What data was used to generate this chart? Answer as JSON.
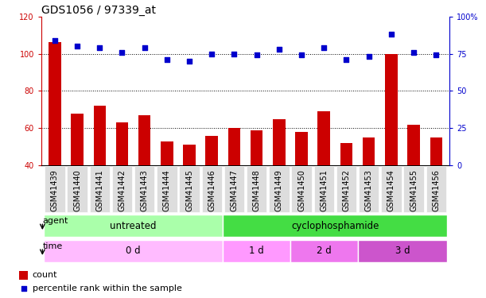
{
  "title": "GDS1056 / 97339_at",
  "samples": [
    "GSM41439",
    "GSM41440",
    "GSM41441",
    "GSM41442",
    "GSM41443",
    "GSM41444",
    "GSM41445",
    "GSM41446",
    "GSM41447",
    "GSM41448",
    "GSM41449",
    "GSM41450",
    "GSM41451",
    "GSM41452",
    "GSM41453",
    "GSM41454",
    "GSM41455",
    "GSM41456"
  ],
  "counts": [
    106,
    68,
    72,
    63,
    67,
    53,
    51,
    56,
    60,
    59,
    65,
    58,
    69,
    52,
    55,
    100,
    62,
    55
  ],
  "percentiles": [
    84,
    80,
    79,
    76,
    79,
    71,
    70,
    75,
    75,
    74,
    78,
    74,
    79,
    71,
    73,
    88,
    76,
    74
  ],
  "bar_color": "#cc0000",
  "dot_color": "#0000cc",
  "left_ylim": [
    40,
    120
  ],
  "left_yticks": [
    40,
    60,
    80,
    100,
    120
  ],
  "right_ylim": [
    0,
    100
  ],
  "right_yticks": [
    0,
    25,
    50,
    75,
    100
  ],
  "right_yticklabels": [
    "0",
    "25",
    "50",
    "75",
    "100%"
  ],
  "grid_lines": [
    60,
    80,
    100
  ],
  "agent_labels": [
    {
      "text": "untreated",
      "start": 0,
      "end": 7,
      "color": "#aaffaa"
    },
    {
      "text": "cyclophosphamide",
      "start": 8,
      "end": 17,
      "color": "#44dd44"
    }
  ],
  "time_labels": [
    {
      "text": "0 d",
      "start": 0,
      "end": 7,
      "color": "#ffbbff"
    },
    {
      "text": "1 d",
      "start": 8,
      "end": 10,
      "color": "#ff99ff"
    },
    {
      "text": "2 d",
      "start": 11,
      "end": 13,
      "color": "#ee77ee"
    },
    {
      "text": "3 d",
      "start": 14,
      "end": 17,
      "color": "#cc55cc"
    }
  ],
  "legend_count_color": "#cc0000",
  "legend_dot_color": "#0000cc",
  "title_fontsize": 10,
  "tick_fontsize": 7,
  "label_fontsize": 8.5,
  "row_label_fontsize": 8
}
